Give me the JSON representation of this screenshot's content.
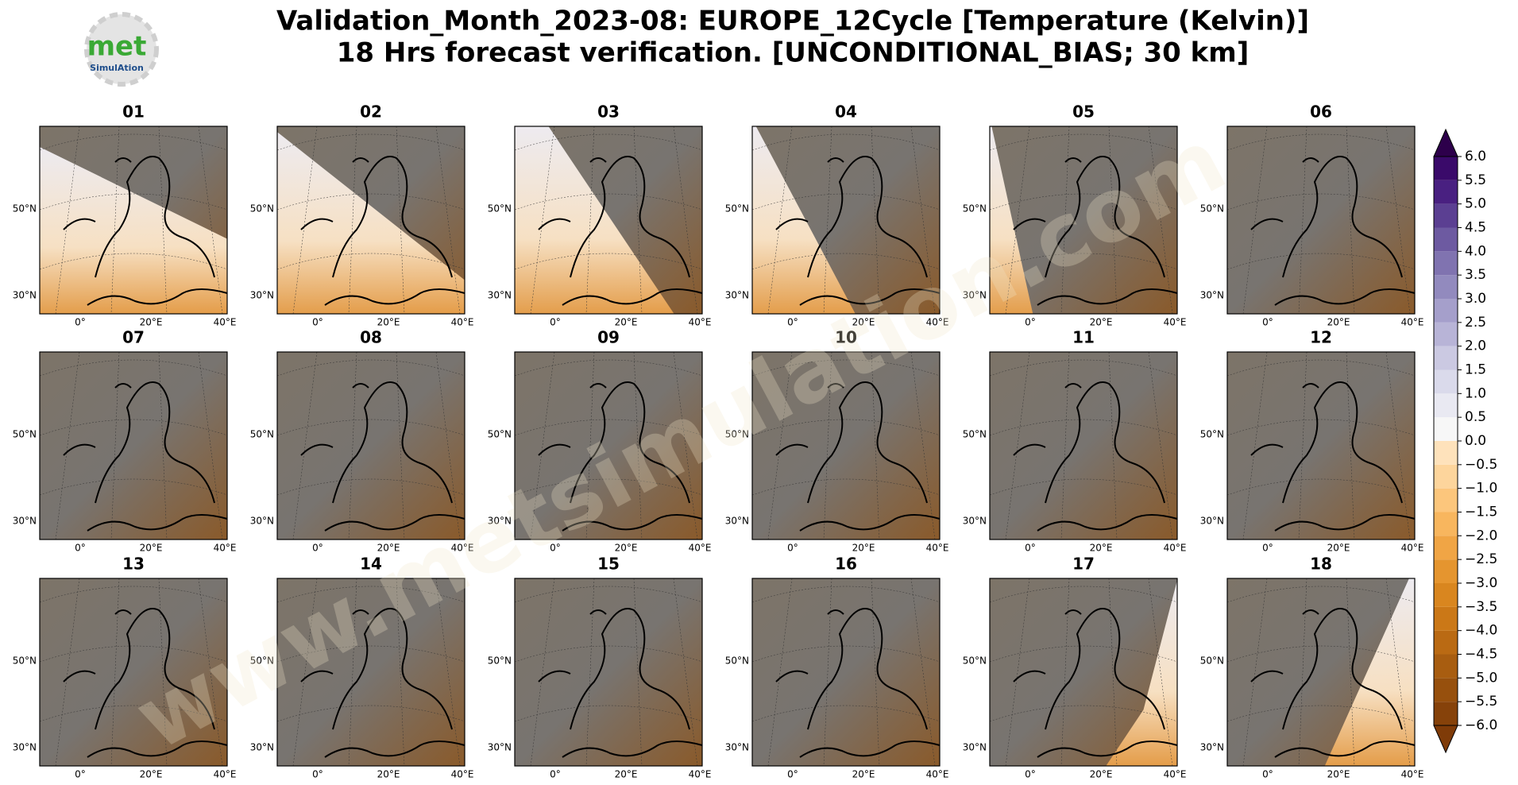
{
  "title_lines": [
    "Validation_Month_2023-08: EUROPE_12Cycle [Temperature (Kelvin)]",
    "18 Hrs forecast verification. [UNCONDITIONAL_BIAS; 30 km]"
  ],
  "logo": {
    "main": "met",
    "sub": "SimulAtion"
  },
  "watermark": "www.metsimulation.com",
  "axes": {
    "lat_labels": [
      "50°N",
      "30°N"
    ],
    "lon_labels": [
      "0°",
      "20°E",
      "40°E"
    ]
  },
  "panels": [
    "01",
    "02",
    "03",
    "04",
    "05",
    "06",
    "07",
    "08",
    "09",
    "10",
    "11",
    "12",
    "13",
    "14",
    "15",
    "16",
    "17",
    "18"
  ],
  "colorbar": {
    "lim": [
      -6,
      6
    ],
    "extend": "both",
    "ticks": [
      {
        "value": -6,
        "label": "−6.0"
      },
      {
        "value": -5.5,
        "label": "−5.5"
      },
      {
        "value": -5,
        "label": "−5.0"
      },
      {
        "value": -4.5,
        "label": "−4.5"
      },
      {
        "value": -4,
        "label": "−4.0"
      },
      {
        "value": -3.5,
        "label": "−3.5"
      },
      {
        "value": -3,
        "label": "−3.0"
      },
      {
        "value": -2.5,
        "label": "−2.5"
      },
      {
        "value": -2,
        "label": "−2.0"
      },
      {
        "value": -1.5,
        "label": "−1.5"
      },
      {
        "value": -1,
        "label": "−1.0"
      },
      {
        "value": -0.5,
        "label": "−0.5"
      },
      {
        "value": 0,
        "label": "0.0"
      },
      {
        "value": 0.5,
        "label": "0.5"
      },
      {
        "value": 1,
        "label": "1.0"
      },
      {
        "value": 1.5,
        "label": "1.5"
      },
      {
        "value": 2,
        "label": "2.0"
      },
      {
        "value": 2.5,
        "label": "2.5"
      },
      {
        "value": 3,
        "label": "3.0"
      },
      {
        "value": 3.5,
        "label": "3.5"
      },
      {
        "value": 4,
        "label": "4.0"
      },
      {
        "value": 4.5,
        "label": "4.5"
      },
      {
        "value": 5,
        "label": "5.0"
      },
      {
        "value": 5.5,
        "label": "5.5"
      },
      {
        "value": 6,
        "label": "6.0"
      }
    ],
    "colors": [
      "#86420a",
      "#97500d",
      "#a85d10",
      "#ba6a13",
      "#cb7817",
      "#d9861f",
      "#e5952f",
      "#f0a545",
      "#f8b65e",
      "#fcc67c",
      "#fdd59c",
      "#fee2bb",
      "#f7f7f7",
      "#e9e9f2",
      "#dadaeb",
      "#cbc9e2",
      "#b8b4d7",
      "#a59fcb",
      "#928abe",
      "#8073b0",
      "#6d5aa1",
      "#5b3f92",
      "#492081",
      "#3a0a6a"
    ],
    "under": "#7f3b08",
    "over": "#2d004b"
  }
}
